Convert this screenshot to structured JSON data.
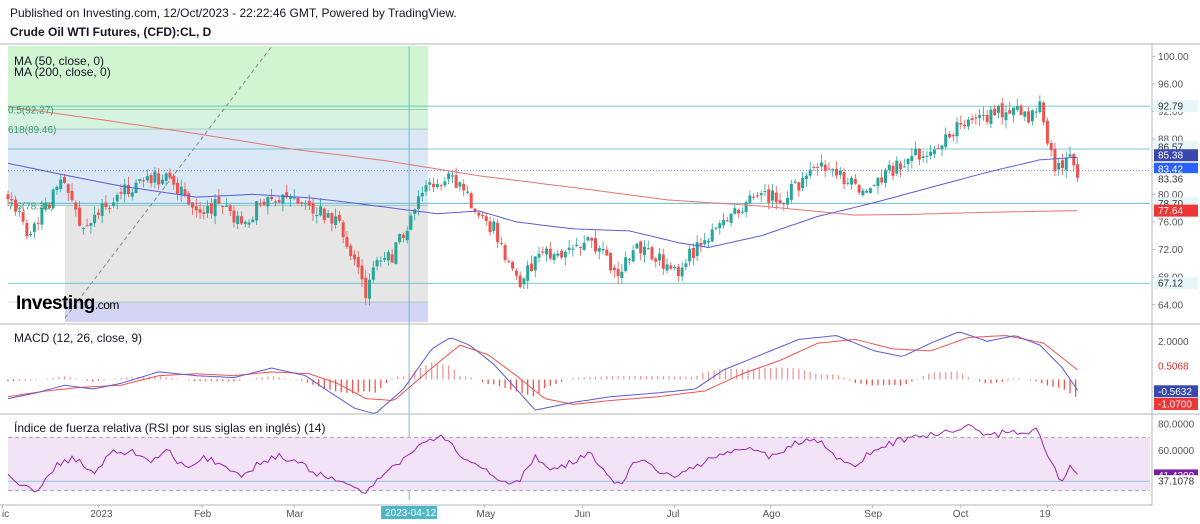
{
  "header": {
    "published": "Published on Investing.com, 12/Oct/2023 - 22:22:46 GMT, Powered by TradingView.",
    "symbol": "Crude Oil WTI Futures, (CFD):CL, D"
  },
  "brand": {
    "name": "Investing",
    "domain": ".com"
  },
  "colors": {
    "up": "#26a69a",
    "down": "#ef5350",
    "ma50": "#5b5bd6",
    "ma200": "#e57373",
    "macd_line": "#5b5bd6",
    "signal_line": "#ef5350",
    "rsi": "#9c27b0",
    "level_line": "#4fb6c8"
  },
  "chart_data": [
    {
      "type": "candlestick",
      "panel": "price",
      "indicators": [
        "MA (50, close, 0)",
        "MA (200, close, 0)"
      ],
      "fib_labels": [
        "0.5(92.27)",
        "618(89.46)",
        "7.6(78.35)"
      ],
      "ylim": [
        61.5,
        101.5
      ],
      "yticks": [
        "100.00",
        "96.00",
        "92.00",
        "88.00",
        "84.00",
        "80.00",
        "76.00",
        "72.00",
        "68.00",
        "64.00"
      ],
      "price_tags": [
        {
          "text": "92.79",
          "value": 92.79,
          "kind": "line"
        },
        {
          "text": "86.57",
          "value": 86.57,
          "kind": "line"
        },
        {
          "text": "85.38",
          "value": 85.38,
          "kind": "ma50"
        },
        {
          "text": "83.42",
          "value": 83.42,
          "kind": "last"
        },
        {
          "text": "83.36",
          "value": 83.36,
          "kind": "plain"
        },
        {
          "text": "78.70",
          "value": 78.7,
          "kind": "line"
        },
        {
          "text": "77.64",
          "value": 77.64,
          "kind": "ma200"
        },
        {
          "text": "67.12",
          "value": 67.12,
          "kind": "line"
        }
      ],
      "close_anchors": [
        [
          0,
          80.0
        ],
        [
          12,
          74.0
        ],
        [
          22,
          79.0
        ],
        [
          30,
          82.0
        ],
        [
          40,
          74.5
        ],
        [
          52,
          78.5
        ],
        [
          70,
          82.0
        ],
        [
          85,
          82.5
        ],
        [
          100,
          77.5
        ],
        [
          112,
          78.5
        ],
        [
          125,
          75.0
        ],
        [
          135,
          79.5
        ],
        [
          150,
          80.0
        ],
        [
          162,
          78.0
        ],
        [
          175,
          76.0
        ],
        [
          180,
          73.0
        ],
        [
          190,
          66.0
        ],
        [
          196,
          70.0
        ],
        [
          204,
          71.0
        ],
        [
          216,
          78.0
        ],
        [
          224,
          81.0
        ],
        [
          235,
          82.5
        ],
        [
          245,
          79.0
        ],
        [
          258,
          75.0
        ],
        [
          266,
          70.0
        ],
        [
          272,
          67.5
        ],
        [
          282,
          71.5
        ],
        [
          290,
          71.0
        ],
        [
          300,
          72.0
        ],
        [
          310,
          73.0
        ],
        [
          318,
          70.5
        ],
        [
          324,
          68.5
        ],
        [
          332,
          72.0
        ],
        [
          338,
          72.5
        ],
        [
          342,
          71.0
        ],
        [
          348,
          70.0
        ],
        [
          356,
          68.5
        ],
        [
          362,
          71.5
        ],
        [
          370,
          72.5
        ],
        [
          380,
          76.0
        ],
        [
          392,
          78.5
        ],
        [
          402,
          80.0
        ],
        [
          410,
          79.0
        ],
        [
          422,
          82.0
        ],
        [
          432,
          84.0
        ],
        [
          442,
          82.5
        ],
        [
          455,
          80.5
        ],
        [
          466,
          83.0
        ],
        [
          478,
          85.0
        ],
        [
          492,
          87.0
        ],
        [
          504,
          89.5
        ],
        [
          515,
          90.5
        ],
        [
          526,
          92.0
        ],
        [
          536,
          93.0
        ],
        [
          542,
          91.0
        ],
        [
          548,
          92.5
        ],
        [
          552,
          88.0
        ],
        [
          556,
          84.0
        ],
        [
          560,
          83.0
        ],
        [
          564,
          86.5
        ],
        [
          568,
          83.42
        ]
      ],
      "ma50_anchors": [
        [
          0,
          84.5
        ],
        [
          30,
          82.8
        ],
        [
          60,
          81.2
        ],
        [
          100,
          79.6
        ],
        [
          130,
          80.0
        ],
        [
          160,
          79.5
        ],
        [
          185,
          78.7
        ],
        [
          210,
          77.8
        ],
        [
          228,
          77.2
        ],
        [
          250,
          77.6
        ],
        [
          270,
          76.0
        ],
        [
          300,
          75.0
        ],
        [
          330,
          74.7
        ],
        [
          356,
          73.0
        ],
        [
          372,
          72.3
        ],
        [
          400,
          74.0
        ],
        [
          430,
          76.8
        ],
        [
          460,
          78.8
        ],
        [
          490,
          81.0
        ],
        [
          520,
          83.2
        ],
        [
          548,
          85.0
        ],
        [
          568,
          85.38
        ]
      ],
      "ma200_anchors": [
        [
          0,
          92.7
        ],
        [
          50,
          90.8
        ],
        [
          100,
          88.8
        ],
        [
          150,
          86.6
        ],
        [
          200,
          84.9
        ],
        [
          250,
          82.7
        ],
        [
          300,
          81.0
        ],
        [
          350,
          79.2
        ],
        [
          400,
          78.3
        ],
        [
          450,
          77.0
        ],
        [
          480,
          77.1
        ],
        [
          520,
          77.4
        ],
        [
          568,
          77.64
        ]
      ]
    },
    {
      "type": "line+histogram",
      "panel": "macd",
      "title": "MACD (12, 26, close, 9)",
      "ylim": [
        -1.7,
        2.8
      ],
      "yticks": [
        "2.0000"
      ],
      "tags": [
        {
          "text": "0.5068",
          "value": 0.5068,
          "kind": "signal"
        },
        {
          "text": "-0.5632",
          "value": -0.5632,
          "kind": "macd"
        },
        {
          "text": "-1.0700",
          "value": -1.07,
          "kind": "hist"
        }
      ],
      "macd_anchors": [
        [
          0,
          -1.0
        ],
        [
          15,
          -0.7
        ],
        [
          30,
          -0.3
        ],
        [
          45,
          -0.5
        ],
        [
          60,
          -0.2
        ],
        [
          80,
          0.4
        ],
        [
          100,
          0.2
        ],
        [
          120,
          0.1
        ],
        [
          140,
          0.6
        ],
        [
          158,
          0.2
        ],
        [
          170,
          -0.6
        ],
        [
          184,
          -1.5
        ],
        [
          195,
          -1.8
        ],
        [
          210,
          -0.5
        ],
        [
          225,
          1.6
        ],
        [
          235,
          2.2
        ],
        [
          245,
          1.8
        ],
        [
          258,
          0.8
        ],
        [
          270,
          -0.5
        ],
        [
          280,
          -1.6
        ],
        [
          300,
          -1.2
        ],
        [
          320,
          -0.9
        ],
        [
          345,
          -0.7
        ],
        [
          365,
          -0.5
        ],
        [
          380,
          0.5
        ],
        [
          400,
          1.3
        ],
        [
          420,
          2.1
        ],
        [
          440,
          2.3
        ],
        [
          460,
          1.5
        ],
        [
          475,
          1.2
        ],
        [
          490,
          1.9
        ],
        [
          505,
          2.5
        ],
        [
          520,
          2.0
        ],
        [
          535,
          2.3
        ],
        [
          548,
          1.8
        ],
        [
          560,
          0.6
        ],
        [
          568,
          -0.5632
        ]
      ],
      "signal_anchors": [
        [
          0,
          -0.9
        ],
        [
          20,
          -0.6
        ],
        [
          40,
          -0.4
        ],
        [
          60,
          -0.3
        ],
        [
          80,
          0.2
        ],
        [
          100,
          0.3
        ],
        [
          120,
          0.2
        ],
        [
          140,
          0.4
        ],
        [
          160,
          0.3
        ],
        [
          175,
          -0.2
        ],
        [
          190,
          -1.0
        ],
        [
          205,
          -1.1
        ],
        [
          225,
          0.6
        ],
        [
          240,
          1.8
        ],
        [
          255,
          1.3
        ],
        [
          270,
          0.2
        ],
        [
          285,
          -1.0
        ],
        [
          300,
          -1.3
        ],
        [
          320,
          -1.1
        ],
        [
          345,
          -0.9
        ],
        [
          370,
          -0.6
        ],
        [
          390,
          0.3
        ],
        [
          410,
          1.0
        ],
        [
          430,
          1.9
        ],
        [
          450,
          2.1
        ],
        [
          470,
          1.6
        ],
        [
          490,
          1.5
        ],
        [
          510,
          2.2
        ],
        [
          530,
          2.3
        ],
        [
          550,
          1.9
        ],
        [
          568,
          0.5068
        ]
      ]
    },
    {
      "type": "line",
      "panel": "rsi",
      "title": "Índice de fuerza relativa (RSI por sus siglas en inglés) (14)",
      "ylim": [
        23,
        86
      ],
      "yticks": [
        "80.0000",
        "60.0000"
      ],
      "bands": [
        70,
        30
      ],
      "tags": [
        {
          "text": "41.4200",
          "value": 41.42,
          "kind": "rsi"
        },
        {
          "text": "37.1078",
          "value": 37.1078,
          "kind": "plain"
        }
      ],
      "rsi_anchors": [
        [
          0,
          42
        ],
        [
          8,
          33
        ],
        [
          15,
          30
        ],
        [
          25,
          48
        ],
        [
          35,
          55
        ],
        [
          45,
          42
        ],
        [
          55,
          58
        ],
        [
          65,
          60
        ],
        [
          75,
          52
        ],
        [
          85,
          60
        ],
        [
          95,
          45
        ],
        [
          105,
          55
        ],
        [
          115,
          48
        ],
        [
          125,
          42
        ],
        [
          135,
          52
        ],
        [
          145,
          56
        ],
        [
          155,
          50
        ],
        [
          165,
          42
        ],
        [
          175,
          38
        ],
        [
          182,
          32
        ],
        [
          190,
          28
        ],
        [
          200,
          45
        ],
        [
          212,
          55
        ],
        [
          222,
          68
        ],
        [
          232,
          70
        ],
        [
          242,
          55
        ],
        [
          252,
          47
        ],
        [
          262,
          38
        ],
        [
          270,
          35
        ],
        [
          280,
          55
        ],
        [
          290,
          45
        ],
        [
          300,
          52
        ],
        [
          310,
          58
        ],
        [
          318,
          40
        ],
        [
          325,
          35
        ],
        [
          335,
          55
        ],
        [
          345,
          45
        ],
        [
          355,
          40
        ],
        [
          365,
          48
        ],
        [
          378,
          58
        ],
        [
          392,
          62
        ],
        [
          405,
          55
        ],
        [
          418,
          65
        ],
        [
          430,
          68
        ],
        [
          440,
          55
        ],
        [
          450,
          50
        ],
        [
          460,
          60
        ],
        [
          470,
          66
        ],
        [
          480,
          70
        ],
        [
          490,
          72
        ],
        [
          500,
          74
        ],
        [
          512,
          78
        ],
        [
          522,
          70
        ],
        [
          532,
          76
        ],
        [
          540,
          72
        ],
        [
          546,
          78
        ],
        [
          552,
          55
        ],
        [
          556,
          45
        ],
        [
          560,
          36
        ],
        [
          564,
          48
        ],
        [
          568,
          41.42
        ]
      ]
    }
  ],
  "xaxis": {
    "labels": [
      {
        "text": "ic",
        "bar": -3
      },
      {
        "text": "2023",
        "bar": 48
      },
      {
        "text": "Feb",
        "bar": 103
      },
      {
        "text": "Mar",
        "bar": 152
      },
      {
        "text": "Ab",
        "bar": 206
      },
      {
        "text": "May",
        "bar": 253
      },
      {
        "text": "Jun",
        "bar": 305
      },
      {
        "text": "Jul",
        "bar": 354
      },
      {
        "text": "Ago",
        "bar": 405
      },
      {
        "text": "Sep",
        "bar": 459
      },
      {
        "text": "Oct",
        "bar": 506
      },
      {
        "text": "19",
        "bar": 552
      }
    ],
    "crosshair_date": "2023-04-12"
  }
}
